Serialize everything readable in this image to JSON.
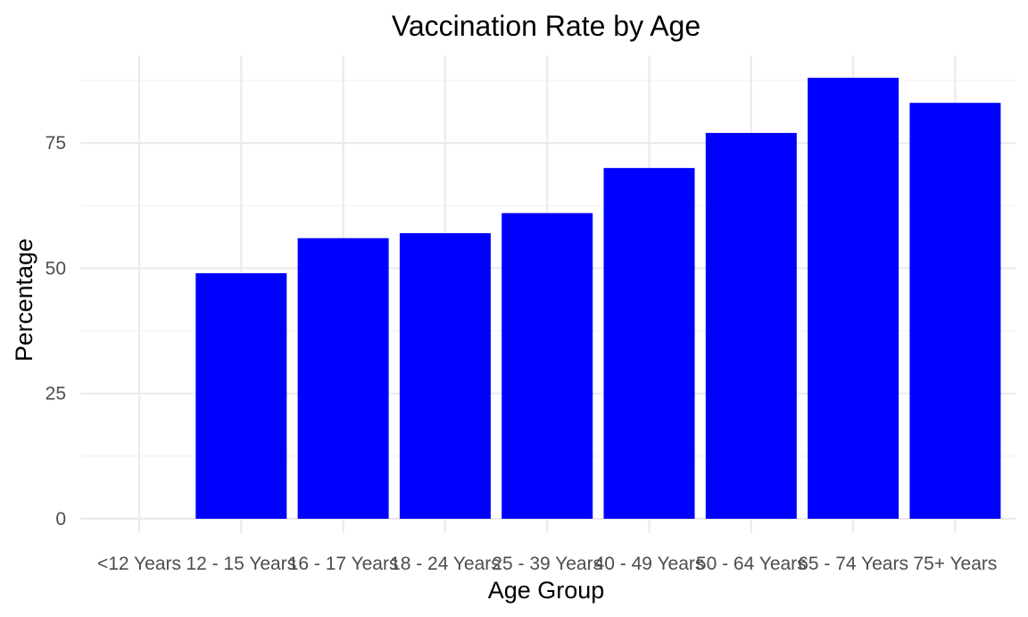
{
  "chart_data": {
    "type": "bar",
    "title": "Vaccination Rate by Age",
    "xlabel": "Age Group",
    "ylabel": "Percentage",
    "categories": [
      "<12 Years",
      "12 - 15 Years",
      "16 - 17 Years",
      "18 - 24 Years",
      "25 - 39 Years",
      "40 - 49 Years",
      "50 - 64 Years",
      "65 - 74 Years",
      "75+ Years"
    ],
    "values": [
      0,
      49,
      56,
      57,
      61,
      70,
      77,
      88,
      83
    ],
    "ylim": [
      0,
      92
    ],
    "y_ticks": [
      0,
      25,
      50,
      75
    ],
    "grid": true,
    "legend": "none",
    "bar_color": "#0000ff",
    "grid_color": "#ebebeb"
  }
}
